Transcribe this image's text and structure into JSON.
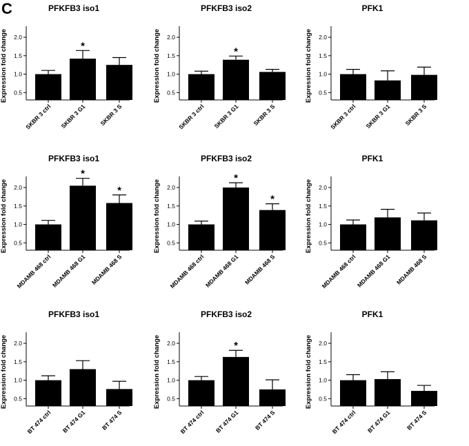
{
  "figure_label": "C",
  "chart_data": [
    {
      "type": "bar",
      "title": "PFKFB3 iso1",
      "ylabel": "Expression fold change",
      "ylim": [
        0.3,
        2.3
      ],
      "yticks": [
        0.5,
        1.0,
        1.5,
        2.0
      ],
      "ytick_labels": [
        "0.5",
        "1.0",
        "1.5",
        "2.0"
      ],
      "categories": [
        "SKBR 3 ctrl",
        "SKBR 3 G1",
        "SKBR 3 S"
      ],
      "values": [
        1.0,
        1.42,
        1.25
      ],
      "errors": [
        0.1,
        0.22,
        0.2
      ],
      "significance": [
        "",
        "*",
        ""
      ]
    },
    {
      "type": "bar",
      "title": "PFKFB3 iso2",
      "ylabel": "Expression fold change",
      "ylim": [
        0.3,
        2.3
      ],
      "yticks": [
        0.5,
        1.0,
        1.5,
        2.0
      ],
      "ytick_labels": [
        "0.5",
        "1.0",
        "1.5",
        "2.0"
      ],
      "categories": [
        "SKBR 3 ctrl",
        "SKBR 3 G1",
        "SKBR 3 S"
      ],
      "values": [
        1.0,
        1.39,
        1.06
      ],
      "errors": [
        0.08,
        0.1,
        0.07
      ],
      "significance": [
        "",
        "*",
        ""
      ]
    },
    {
      "type": "bar",
      "title": "PFK1",
      "ylabel": "Expression fold change",
      "ylim": [
        0.3,
        2.3
      ],
      "yticks": [
        0.5,
        1.0,
        1.5,
        2.0
      ],
      "ytick_labels": [
        "0.5",
        "1.0",
        "1.5",
        "2.0"
      ],
      "categories": [
        "SKBR 3 ctrl",
        "SKBR 3 G1",
        "SKBR 3 S"
      ],
      "values": [
        1.0,
        0.83,
        0.98
      ],
      "errors": [
        0.13,
        0.26,
        0.21
      ],
      "significance": [
        "",
        "",
        ""
      ]
    },
    {
      "type": "bar",
      "title": "PFKFB3 iso1",
      "ylabel": "Expression fold change",
      "ylim": [
        0.3,
        2.3
      ],
      "yticks": [
        0.5,
        1.0,
        1.5,
        2.0
      ],
      "ytick_labels": [
        "0.5",
        "1.0",
        "1.5",
        "2.0"
      ],
      "categories": [
        "MDAMB 468 ctrl",
        "MDAMB 468 G1",
        "MDAMB 468 S"
      ],
      "values": [
        1.0,
        2.05,
        1.58
      ],
      "errors": [
        0.11,
        0.2,
        0.22
      ],
      "significance": [
        "",
        "*",
        "*"
      ]
    },
    {
      "type": "bar",
      "title": "PFKFB3 iso2",
      "ylabel": "Expression fold change",
      "ylim": [
        0.3,
        2.3
      ],
      "yticks": [
        0.5,
        1.0,
        1.5,
        2.0
      ],
      "ytick_labels": [
        "0.5",
        "1.0",
        "1.5",
        "2.0"
      ],
      "categories": [
        "MDAMB 468 ctrl",
        "MDAMB 468 G1",
        "MDAMB 468 S"
      ],
      "values": [
        1.0,
        2.0,
        1.39
      ],
      "errors": [
        0.09,
        0.13,
        0.17
      ],
      "significance": [
        "",
        "*",
        "*"
      ]
    },
    {
      "type": "bar",
      "title": "PFK1",
      "ylabel": "Expression fold change",
      "ylim": [
        0.3,
        2.3
      ],
      "yticks": [
        0.5,
        1.0,
        1.5,
        2.0
      ],
      "ytick_labels": [
        "0.5",
        "1.0",
        "1.5",
        "2.0"
      ],
      "categories": [
        "MDAMB 468 ctrl",
        "MDAMB 468 G1",
        "MDAMB 468 S"
      ],
      "values": [
        1.0,
        1.19,
        1.11
      ],
      "errors": [
        0.12,
        0.22,
        0.2
      ],
      "significance": [
        "",
        "",
        ""
      ]
    },
    {
      "type": "bar",
      "title": "PFKFB3 iso1",
      "ylabel": "Expression fold change",
      "ylim": [
        0.3,
        2.3
      ],
      "yticks": [
        0.5,
        1.0,
        1.5,
        2.0
      ],
      "ytick_labels": [
        "0.5",
        "1.0",
        "1.5",
        "2.0"
      ],
      "categories": [
        "BT 474 ctrl",
        "BT 474 G1",
        "BT 474 S"
      ],
      "values": [
        1.0,
        1.3,
        0.76
      ],
      "errors": [
        0.12,
        0.23,
        0.21
      ],
      "significance": [
        "",
        "",
        ""
      ]
    },
    {
      "type": "bar",
      "title": "PFKFB3 iso2",
      "ylabel": "Expression fold change",
      "ylim": [
        0.3,
        2.3
      ],
      "yticks": [
        0.5,
        1.0,
        1.5,
        2.0
      ],
      "ytick_labels": [
        "0.5",
        "1.0",
        "1.5",
        "2.0"
      ],
      "categories": [
        "BT 474 ctrl",
        "BT 474 G1",
        "BT 474 S"
      ],
      "values": [
        1.0,
        1.63,
        0.75
      ],
      "errors": [
        0.1,
        0.18,
        0.26
      ],
      "significance": [
        "",
        "*",
        ""
      ]
    },
    {
      "type": "bar",
      "title": "PFK1",
      "ylabel": "Expression fold change",
      "ylim": [
        0.3,
        2.3
      ],
      "yticks": [
        0.5,
        1.0,
        1.5,
        2.0
      ],
      "ytick_labels": [
        "0.5",
        "1.0",
        "1.5",
        "2.0"
      ],
      "categories": [
        "BT 474 ctrl",
        "BT 474 G1",
        "BT 474 S"
      ],
      "values": [
        1.0,
        1.03,
        0.71
      ],
      "errors": [
        0.15,
        0.2,
        0.15
      ],
      "significance": [
        "",
        "",
        ""
      ]
    }
  ]
}
